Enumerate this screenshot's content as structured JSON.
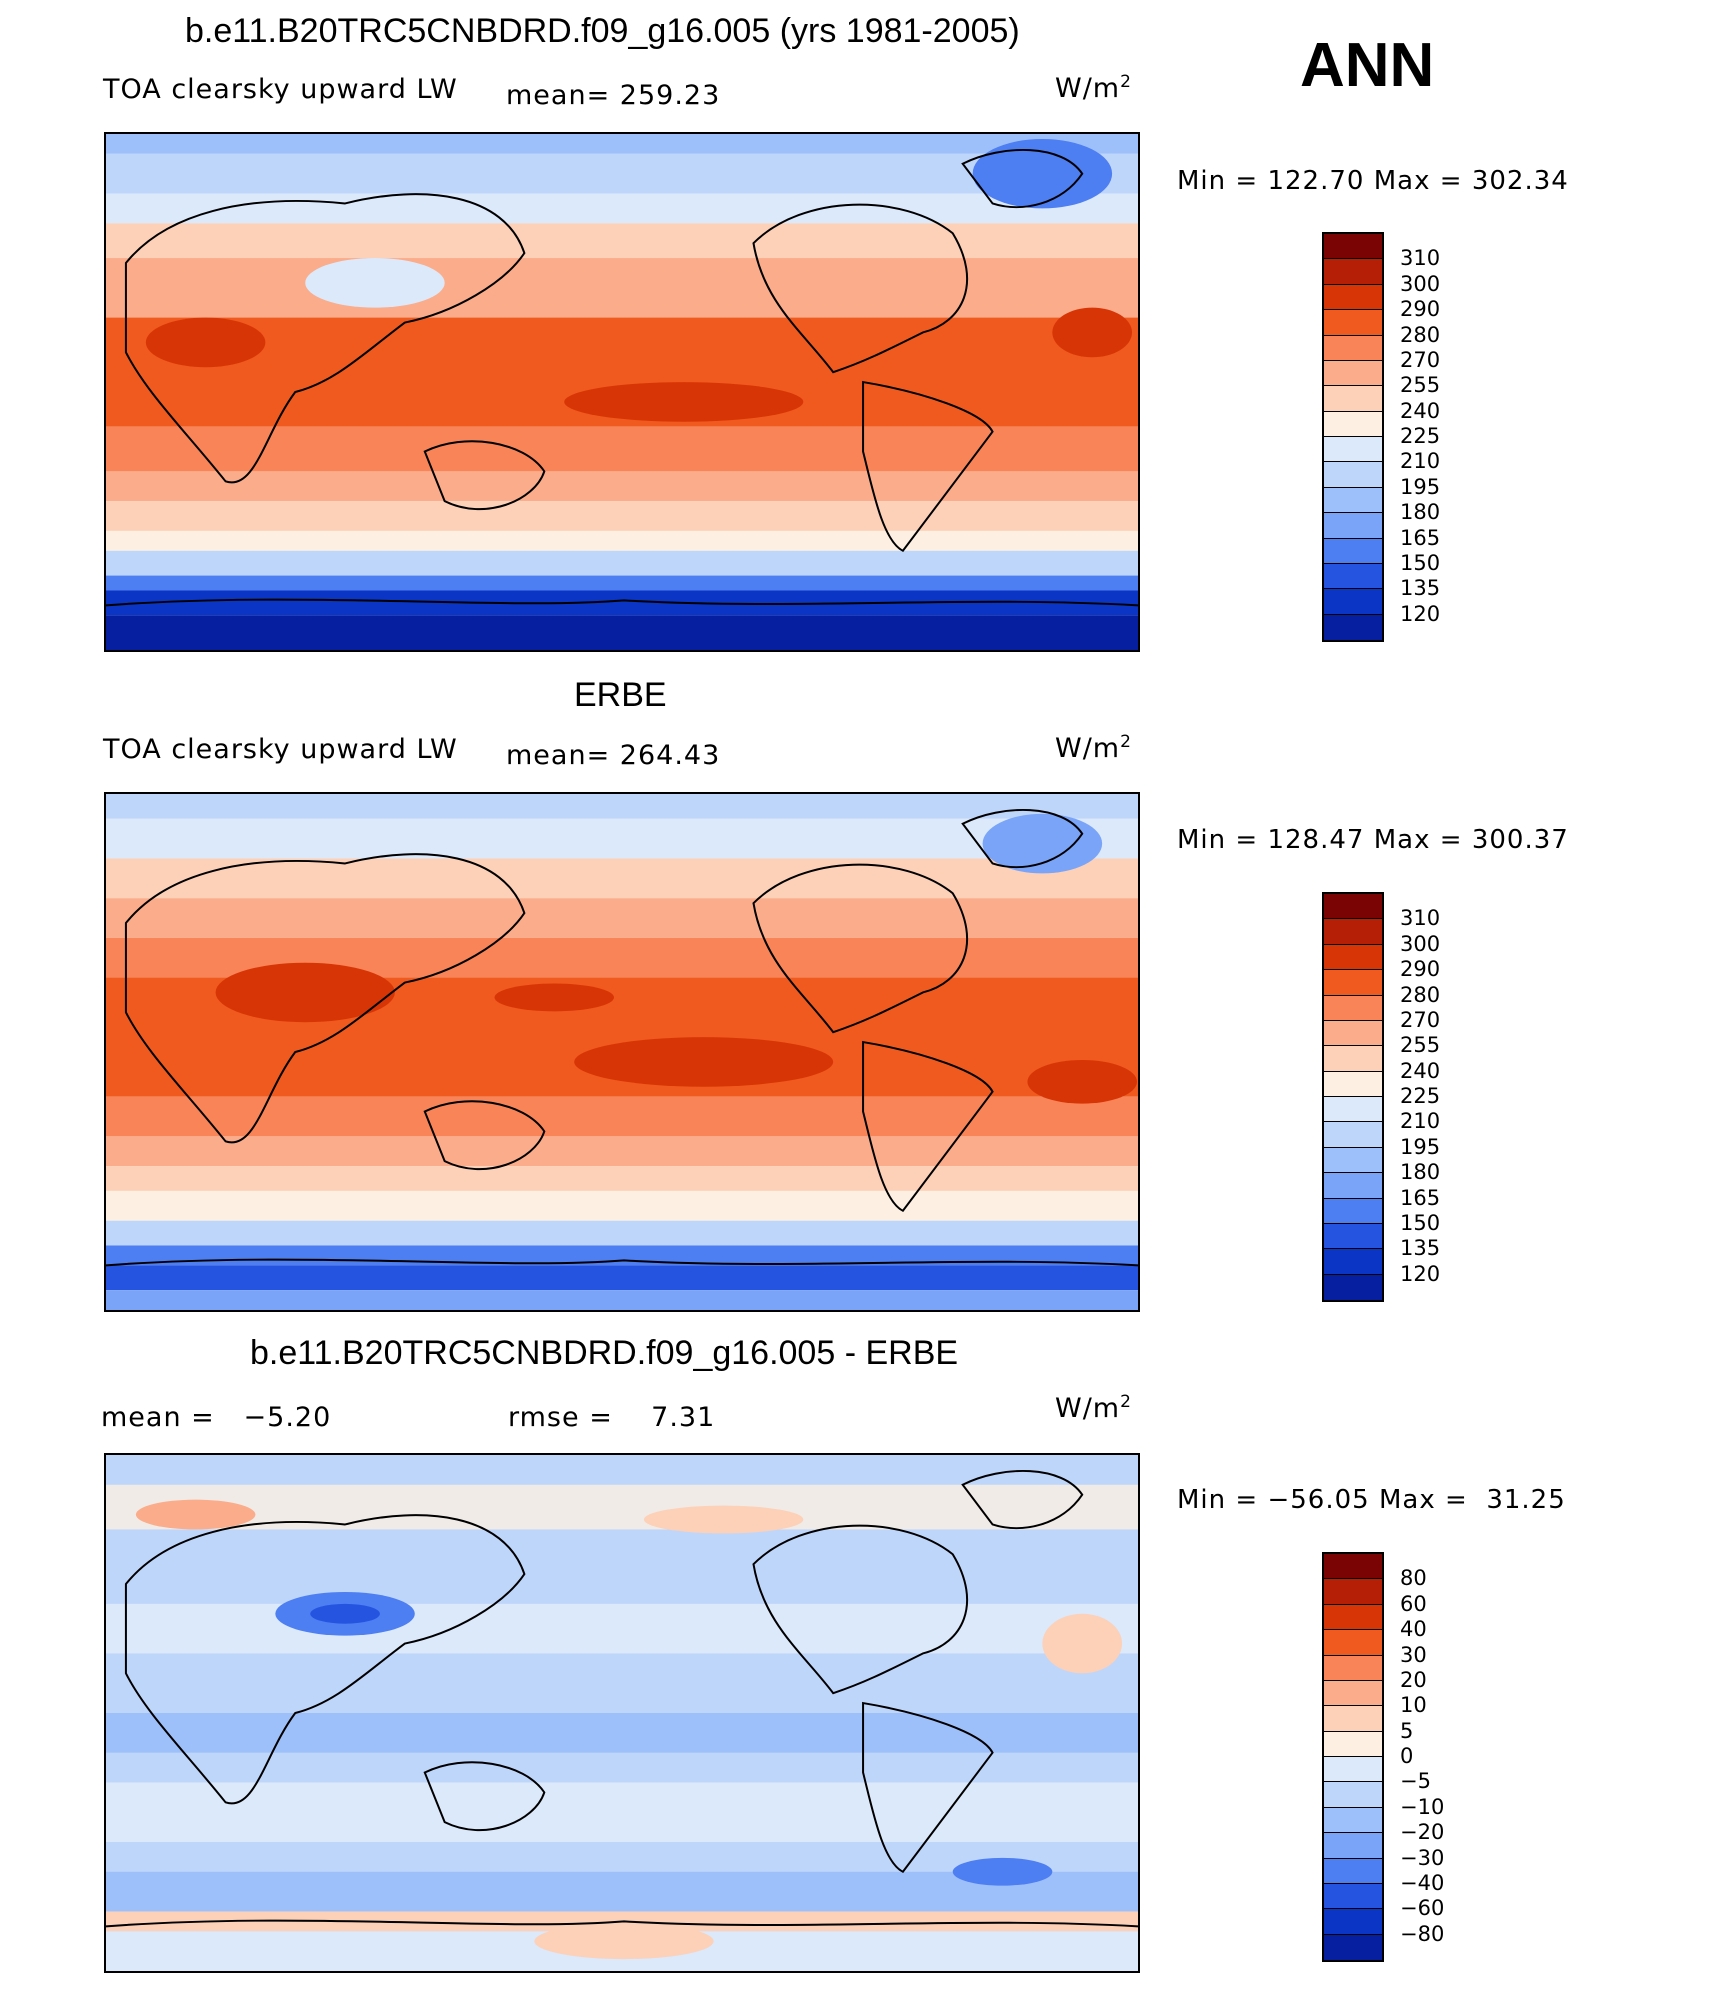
{
  "season": "ANN",
  "units": "W/m",
  "units_exp": "2",
  "panels": [
    {
      "title": "b.e11.B20TRC5CNBDRD.f09_g16.005 (yrs 1981-2005)",
      "field": "TOA clearsky upward LW",
      "mean_label": "mean=",
      "mean": "259.23",
      "min_label": "Min",
      "min": "122.70",
      "max_label": "Max",
      "max": "302.34"
    },
    {
      "title": "ERBE",
      "field": "TOA clearsky upward LW",
      "mean_label": "mean=",
      "mean": "264.43",
      "min_label": "Min",
      "min": "128.47",
      "max_label": "Max",
      "max": "300.37"
    },
    {
      "title": "b.e11.B20TRC5CNBDRD.f09_g16.005 - ERBE",
      "mean_label": "mean =",
      "mean": "−5.20",
      "rmse_label": "rmse =",
      "rmse": "7.31",
      "min_label": "Min",
      "min": "−56.05",
      "max_label": "Max",
      "max": "31.25"
    }
  ],
  "colorbar_abs": {
    "labels": [
      "310",
      "300",
      "290",
      "280",
      "270",
      "255",
      "240",
      "225",
      "210",
      "195",
      "180",
      "165",
      "150",
      "135",
      "120"
    ],
    "colors": [
      "#7a0403",
      "#b51f06",
      "#d83506",
      "#f05a1e",
      "#f88458",
      "#fbac8a",
      "#fdd0b8",
      "#fdf0e2",
      "#dbe9fb",
      "#bfd6fb",
      "#9ec0fa",
      "#7aa4f8",
      "#4d7ef2",
      "#2555e0",
      "#0b35c4",
      "#061fa0"
    ]
  },
  "colorbar_diff": {
    "labels": [
      "80",
      "60",
      "40",
      "30",
      "20",
      "10",
      "5",
      "0",
      "−5",
      "−10",
      "−20",
      "−30",
      "−40",
      "−60",
      "−80"
    ],
    "colors": [
      "#7a0403",
      "#b51f06",
      "#d83506",
      "#f05a1e",
      "#f88458",
      "#fbac8a",
      "#fdd0b8",
      "#fdf0e2",
      "#dbe9fb",
      "#bfd6fb",
      "#9ec0fa",
      "#7aa4f8",
      "#4d7ef2",
      "#2555e0",
      "#0b35c4",
      "#061fa0"
    ]
  }
}
